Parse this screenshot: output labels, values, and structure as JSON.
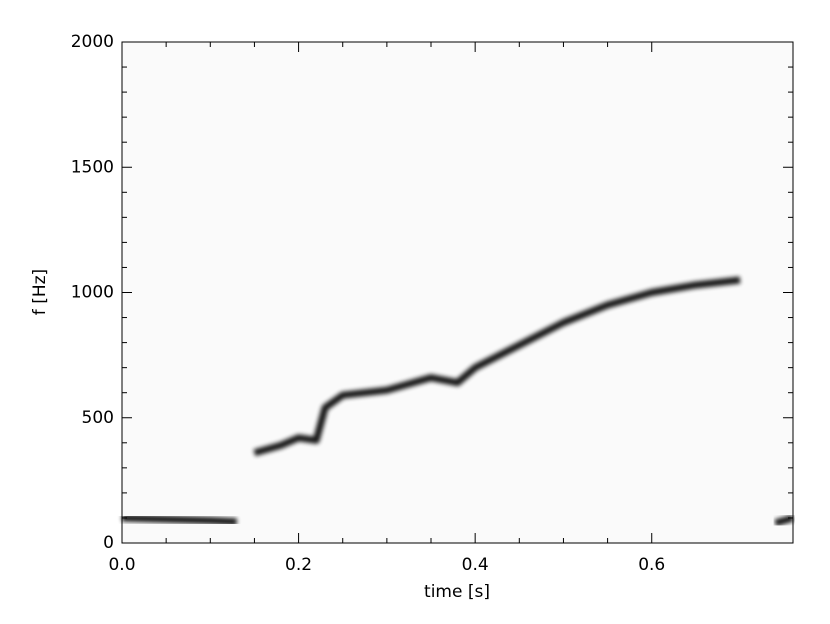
{
  "chart_data": {
    "type": "line",
    "xlabel": "time [s]",
    "ylabel": "f [Hz]",
    "x": [
      0,
      0.05,
      0.1,
      0.13,
      0.135,
      0.15,
      0.18,
      0.2,
      0.22,
      0.23,
      0.25,
      0.3,
      0.35,
      0.38,
      0.4,
      0.45,
      0.5,
      0.55,
      0.6,
      0.65,
      0.7,
      0.72,
      0.74,
      0.76
    ],
    "series": [
      {
        "color": "#000000",
        "values": [
          100,
          95,
          90,
          85,
          null,
          360,
          390,
          420,
          410,
          540,
          590,
          610,
          660,
          640,
          700,
          790,
          880,
          950,
          1000,
          1030,
          1050,
          null,
          80,
          100
        ]
      }
    ],
    "xlim": [
      0,
      0.76
    ],
    "ylim": [
      0,
      2000
    ],
    "xticks": [
      {
        "value": 0,
        "label": "0.0"
      },
      0.2,
      0.4,
      0.6
    ],
    "yticks": [
      0,
      500,
      1000,
      1500,
      2000
    ]
  }
}
